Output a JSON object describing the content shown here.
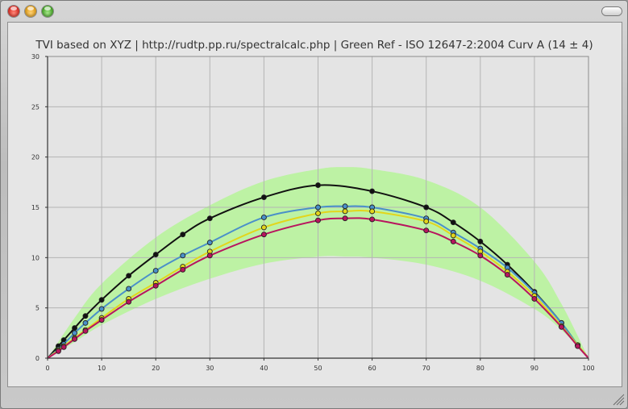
{
  "window": {
    "buttons": [
      "close",
      "minimize",
      "zoom"
    ]
  },
  "chart_data": {
    "type": "line",
    "title": "TVI based on XYZ | http://rudtp.pp.ru/spectralcalc.php | Green Ref - ISO 12647-2:2004 Curv A (14 ± 4)",
    "xlim": [
      0,
      100
    ],
    "ylim": [
      0,
      30
    ],
    "x_ticks": [
      0,
      10,
      20,
      30,
      40,
      50,
      60,
      70,
      80,
      90,
      100
    ],
    "y_ticks": [
      0,
      5,
      10,
      15,
      20,
      25,
      30
    ],
    "grid": true,
    "tolerance_band": {
      "color": "#bdf2a4",
      "x": [
        0,
        5,
        10,
        20,
        30,
        40,
        50,
        55,
        60,
        70,
        80,
        90,
        95,
        100
      ],
      "lower": [
        0,
        1.6,
        3.3,
        5.9,
        7.9,
        9.4,
        10.1,
        10.1,
        10.0,
        9.3,
        7.7,
        4.9,
        2.8,
        0
      ],
      "upper": [
        0,
        4.0,
        7.4,
        12.0,
        15.2,
        17.6,
        18.8,
        19.0,
        18.8,
        17.7,
        15.0,
        9.6,
        5.4,
        0
      ]
    },
    "series": [
      {
        "color": "#111111",
        "x": [
          0,
          2,
          3,
          5,
          7,
          10,
          15,
          20,
          25,
          30,
          40,
          50,
          60,
          70,
          75,
          80,
          85,
          90,
          95,
          98,
          100
        ],
        "values": [
          0,
          1.2,
          1.8,
          3.0,
          4.2,
          5.8,
          8.2,
          10.3,
          12.3,
          13.9,
          16.0,
          17.2,
          16.6,
          15.0,
          13.5,
          11.6,
          9.3,
          6.6,
          3.5,
          1.3,
          0
        ]
      },
      {
        "color": "#4a90c9",
        "x": [
          0,
          2,
          3,
          5,
          7,
          10,
          15,
          20,
          25,
          30,
          40,
          50,
          55,
          60,
          70,
          75,
          80,
          85,
          90,
          95,
          98,
          100
        ],
        "values": [
          0,
          0.9,
          1.4,
          2.5,
          3.5,
          4.9,
          6.9,
          8.7,
          10.2,
          11.5,
          14.0,
          15.0,
          15.1,
          15.0,
          13.9,
          12.5,
          10.9,
          9.0,
          6.5,
          3.5,
          1.3,
          0
        ]
      },
      {
        "color": "#e2d61c",
        "x": [
          0,
          2,
          3,
          5,
          7,
          10,
          15,
          20,
          25,
          30,
          40,
          50,
          55,
          60,
          70,
          75,
          80,
          85,
          90,
          95,
          98,
          100
        ],
        "values": [
          0,
          0.8,
          1.2,
          2.0,
          2.8,
          4.0,
          5.9,
          7.5,
          9.1,
          10.6,
          13.0,
          14.4,
          14.6,
          14.6,
          13.6,
          12.2,
          10.6,
          8.6,
          6.2,
          3.2,
          1.3,
          0
        ]
      },
      {
        "color": "#b8155e",
        "x": [
          0,
          2,
          3,
          5,
          7,
          10,
          15,
          20,
          25,
          30,
          40,
          50,
          55,
          60,
          70,
          75,
          80,
          85,
          90,
          95,
          98,
          100
        ],
        "values": [
          0,
          0.7,
          1.1,
          1.9,
          2.7,
          3.8,
          5.6,
          7.2,
          8.8,
          10.2,
          12.3,
          13.7,
          13.9,
          13.8,
          12.7,
          11.6,
          10.2,
          8.3,
          5.9,
          3.1,
          1.2,
          0
        ]
      }
    ]
  }
}
